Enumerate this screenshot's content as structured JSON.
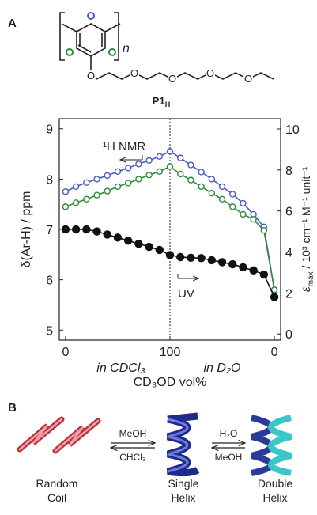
{
  "panel_a": {
    "label": "A",
    "polymer": {
      "repeat": "n",
      "ether_o": "O",
      "chain_o": [
        "O",
        "O",
        "O",
        "O"
      ],
      "name": {
        "main": "P1",
        "sub": "H"
      }
    }
  },
  "chart_data": {
    "type": "line",
    "x": [
      0,
      10,
      20,
      30,
      40,
      50,
      60,
      70,
      80,
      90,
      100,
      110,
      120,
      130,
      140,
      150,
      160,
      170,
      180,
      190,
      200
    ],
    "xlim": [
      -6,
      206
    ],
    "xticks": [
      0,
      100,
      {
        "value": 200,
        "label": "0"
      }
    ],
    "x_label": "CD₃OD vol%",
    "x_segment_labels": [
      "in CDCl₃",
      "in D₂O"
    ],
    "ylim": [
      4.8,
      9.2
    ],
    "yticks": [
      5,
      6,
      7,
      8,
      9
    ],
    "y_label": "δ(Ar-H) / ppm",
    "y2lim": [
      -0.3,
      10.5
    ],
    "y2ticks": [
      0,
      2,
      4,
      6,
      8,
      10
    ],
    "y2_label": {
      "main": "ε",
      "sub": "max",
      "rest": " / 10³ cm⁻¹ M⁻¹ unit⁻¹"
    },
    "divider_x": 100,
    "annotations": [
      "¹H NMR",
      "UV"
    ],
    "series": [
      {
        "color": "#4a5bc4",
        "marker": "open",
        "axis": "y",
        "values": [
          7.75,
          7.85,
          7.93,
          8.0,
          8.07,
          8.15,
          8.22,
          8.3,
          8.37,
          8.45,
          8.55,
          8.42,
          8.28,
          8.14,
          8.0,
          7.85,
          7.7,
          7.52,
          7.3,
          7.05,
          5.8
        ]
      },
      {
        "color": "#2e8b3a",
        "marker": "open",
        "axis": "y",
        "values": [
          7.45,
          7.53,
          7.6,
          7.68,
          7.76,
          7.85,
          7.92,
          8.0,
          8.08,
          8.15,
          8.25,
          8.1,
          7.98,
          7.85,
          7.72,
          7.6,
          7.45,
          7.3,
          7.2,
          6.98,
          5.8
        ]
      },
      {
        "color": "#111111",
        "marker": "filled",
        "axis": "y2",
        "values": [
          5.1,
          5.1,
          5.1,
          5.0,
          4.85,
          4.7,
          4.55,
          4.4,
          4.25,
          4.1,
          3.85,
          3.75,
          3.72,
          3.7,
          3.6,
          3.5,
          3.4,
          3.25,
          3.1,
          2.9,
          1.8
        ]
      }
    ]
  },
  "panel_b": {
    "label": "B",
    "states": [
      {
        "lines": [
          "Random",
          "Coil"
        ]
      },
      {
        "lines": [
          "Single",
          "Helix"
        ]
      },
      {
        "lines": [
          "Double",
          "Helix"
        ]
      }
    ],
    "arrow1": {
      "top": "MeOH",
      "bottom": "CHCl₃"
    },
    "arrow2": {
      "top": "H₂O",
      "bottom": "MeOH"
    }
  }
}
